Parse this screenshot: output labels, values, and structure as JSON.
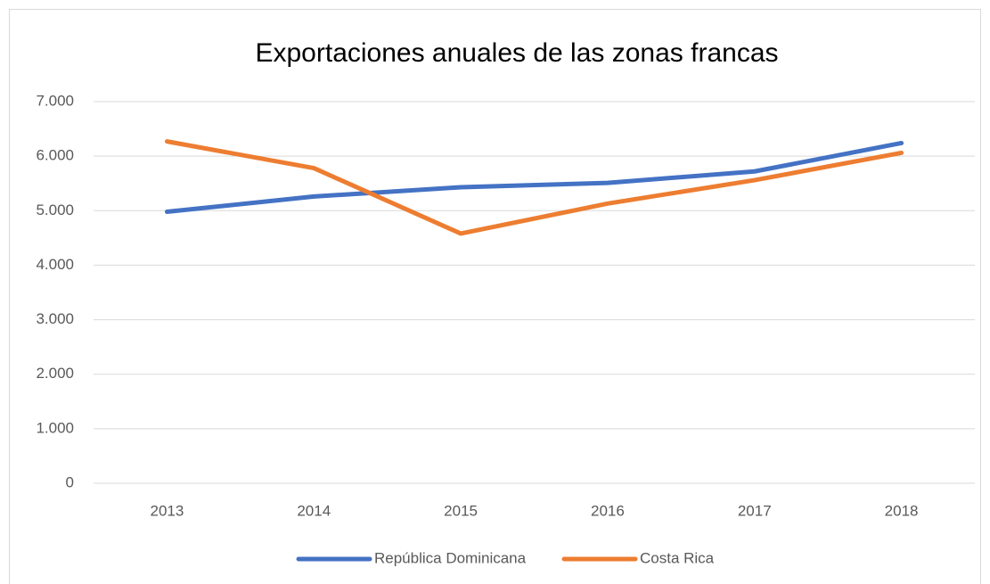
{
  "chart_data": {
    "type": "line",
    "title": "Exportaciones anuales de las zonas francas",
    "categories": [
      "2013",
      "2014",
      "2015",
      "2016",
      "2017",
      "2018"
    ],
    "series": [
      {
        "name": "República Dominicana",
        "color": "#4472c4",
        "values": [
          4980,
          5260,
          5430,
          5510,
          5720,
          6240
        ]
      },
      {
        "name": "Costa Rica",
        "color": "#ed7d31",
        "values": [
          6270,
          5780,
          4580,
          5130,
          5560,
          6060
        ]
      }
    ],
    "ylim": [
      0,
      7000
    ],
    "yticks": [
      0,
      {
        "value": 1000,
        "label": "1.000"
      },
      {
        "value": 2000,
        "label": "2.000"
      },
      {
        "value": 3000,
        "label": "3.000"
      },
      {
        "value": 4000,
        "label": "4.000"
      },
      {
        "value": 5000,
        "label": "5.000"
      },
      {
        "value": 6000,
        "label": "6.000"
      },
      {
        "value": 7000,
        "label": "7.000"
      }
    ],
    "grid": true,
    "legend": "bottom"
  }
}
